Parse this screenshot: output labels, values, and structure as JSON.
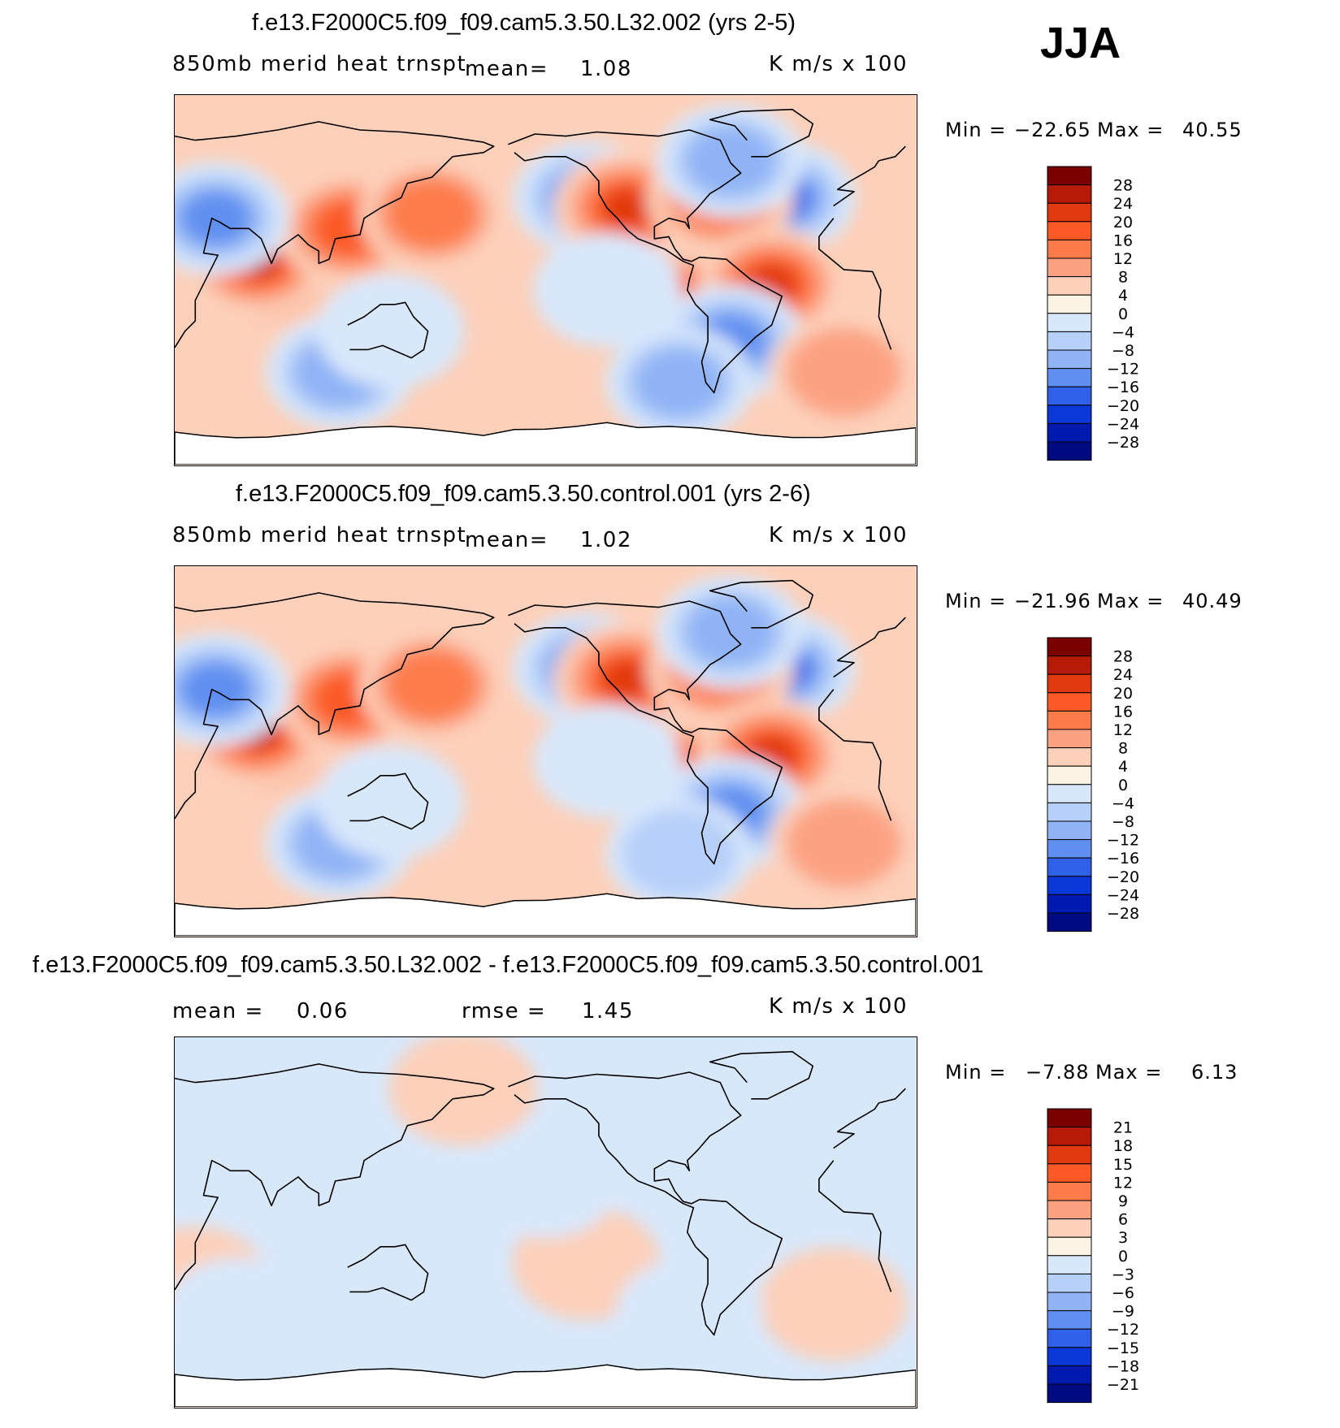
{
  "season": "JJA",
  "panels": [
    {
      "title": "f.e13.F2000C5.f09_f09.cam5.3.50.L32.002 (yrs 2-5)",
      "variable": "850mb merid heat trnspt",
      "mean_label": "mean=",
      "mean_value": "1.08",
      "units": "K m/s x 100",
      "min_label": "Min =",
      "min_value": "−22.65",
      "max_label": "Max =",
      "max_value": "40.55",
      "colorbar": [
        "28",
        "24",
        "20",
        "16",
        "12",
        "8",
        "4",
        "0",
        "−4",
        "−8",
        "−12",
        "−16",
        "−20",
        "−24",
        "−28"
      ]
    },
    {
      "title": "f.e13.F2000C5.f09_f09.cam5.3.50.control.001 (yrs 2-6)",
      "variable": "850mb merid heat trnspt",
      "mean_label": "mean=",
      "mean_value": "1.02",
      "units": "K m/s x 100",
      "min_label": "Min =",
      "min_value": "−21.96",
      "max_label": "Max =",
      "max_value": "40.49",
      "colorbar": [
        "28",
        "24",
        "20",
        "16",
        "12",
        "8",
        "4",
        "0",
        "−4",
        "−8",
        "−12",
        "−16",
        "−20",
        "−24",
        "−28"
      ]
    },
    {
      "title": "f.e13.F2000C5.f09_f09.cam5.3.50.L32.002 - f.e13.F2000C5.f09_f09.cam5.3.50.control.001",
      "mean_label": "mean =",
      "mean_value": "0.06",
      "rmse_label": "rmse =",
      "rmse_value": "1.45",
      "units": "K m/s x 100",
      "min_label": "Min =",
      "min_value": "−7.88",
      "max_label": "Max =",
      "max_value": "6.13",
      "colorbar": [
        "21",
        "18",
        "15",
        "12",
        "9",
        "6",
        "3",
        "0",
        "−3",
        "−6",
        "−9",
        "−12",
        "−15",
        "−18",
        "−21"
      ]
    }
  ],
  "colors": {
    "palette": [
      "#7a0000",
      "#b51b06",
      "#e23a10",
      "#fb5a26",
      "#fd7b49",
      "#fca283",
      "#fdd0b9",
      "#fdf3e5",
      "#d8e8fb",
      "#b7d0f9",
      "#8fb3f5",
      "#5f8ff0",
      "#2f62e8",
      "#0a38d6",
      "#001ab0",
      "#000a80"
    ]
  },
  "chart_data": [
    {
      "type": "heatmap",
      "title": "f.e13.F2000C5.f09_f09.cam5.3.50.L32.002 (yrs 2-5)",
      "subtitle": "850mb merid heat trnspt",
      "units": "K m/s x 100",
      "mean": 1.08,
      "min": -22.65,
      "max": 40.55,
      "levels": [
        -28,
        -24,
        -20,
        -16,
        -12,
        -8,
        -4,
        0,
        4,
        8,
        12,
        16,
        20,
        24,
        28
      ],
      "blobs": [
        {
          "lon": 75,
          "lat": 3,
          "v": 30
        },
        {
          "lon": 70,
          "lat": 10,
          "v": 24
        },
        {
          "lon": 115,
          "lat": 25,
          "v": 18
        },
        {
          "lon": 155,
          "lat": 32,
          "v": 12
        },
        {
          "lon": -130,
          "lat": 40,
          "v": -24
        },
        {
          "lon": -110,
          "lat": 35,
          "v": 20
        },
        {
          "lon": -35,
          "lat": 40,
          "v": -22
        },
        {
          "lon": -65,
          "lat": 40,
          "v": 14
        },
        {
          "lon": -85,
          "lat": -12,
          "v": 16
        },
        {
          "lon": -40,
          "lat": -2,
          "v": 20
        },
        {
          "lon": -60,
          "lat": -30,
          "v": -16
        },
        {
          "lon": 50,
          "lat": 30,
          "v": -16
        },
        {
          "lon": 110,
          "lat": -45,
          "v": -12
        },
        {
          "lon": -85,
          "lat": -50,
          "v": -12
        },
        {
          "lon": -60,
          "lat": 58,
          "v": -12
        },
        {
          "lon": 135,
          "lat": -25,
          "v": -6
        },
        {
          "lon": -5,
          "lat": -45,
          "v": 8
        },
        {
          "lon": -120,
          "lat": -5,
          "v": -5
        }
      ]
    },
    {
      "type": "heatmap",
      "title": "f.e13.F2000C5.f09_f09.cam5.3.50.control.001 (yrs 2-6)",
      "subtitle": "850mb merid heat trnspt",
      "units": "K m/s x 100",
      "mean": 1.02,
      "min": -21.96,
      "max": 40.49,
      "levels": [
        -28,
        -24,
        -20,
        -16,
        -12,
        -8,
        -4,
        0,
        4,
        8,
        12,
        16,
        20,
        24,
        28
      ],
      "blobs": [
        {
          "lon": 75,
          "lat": 3,
          "v": 30
        },
        {
          "lon": 70,
          "lat": 10,
          "v": 24
        },
        {
          "lon": 115,
          "lat": 25,
          "v": 18
        },
        {
          "lon": 155,
          "lat": 32,
          "v": 14
        },
        {
          "lon": -130,
          "lat": 40,
          "v": -24
        },
        {
          "lon": -110,
          "lat": 35,
          "v": 20
        },
        {
          "lon": -35,
          "lat": 40,
          "v": -22
        },
        {
          "lon": -65,
          "lat": 40,
          "v": 14
        },
        {
          "lon": -85,
          "lat": -12,
          "v": 16
        },
        {
          "lon": -40,
          "lat": -2,
          "v": 20
        },
        {
          "lon": -60,
          "lat": -30,
          "v": -16
        },
        {
          "lon": 50,
          "lat": 30,
          "v": -16
        },
        {
          "lon": 110,
          "lat": -45,
          "v": -12
        },
        {
          "lon": -85,
          "lat": -50,
          "v": -10
        },
        {
          "lon": -60,
          "lat": 58,
          "v": -12
        },
        {
          "lon": 135,
          "lat": -25,
          "v": -6
        },
        {
          "lon": -5,
          "lat": -45,
          "v": 8
        },
        {
          "lon": -120,
          "lat": -5,
          "v": -5
        }
      ]
    },
    {
      "type": "heatmap",
      "title": "f.e13.F2000C5.f09_f09.cam5.3.50.L32.002 - f.e13.F2000C5.f09_f09.cam5.3.50.control.001",
      "units": "K m/s x 100",
      "mean": 0.06,
      "rmse": 1.45,
      "min": -7.88,
      "max": 6.13,
      "levels": [
        -21,
        -18,
        -15,
        -12,
        -9,
        -6,
        -3,
        0,
        3,
        6,
        9,
        12,
        15,
        18,
        21
      ],
      "blobs": [
        {
          "lon": 40,
          "lat": -30,
          "v": 4
        },
        {
          "lon": -130,
          "lat": -20,
          "v": 3
        },
        {
          "lon": -10,
          "lat": -40,
          "v": 4
        },
        {
          "lon": 170,
          "lat": 65,
          "v": 3
        },
        {
          "lon": 120,
          "lat": -40,
          "v": -4
        },
        {
          "lon": -80,
          "lat": -45,
          "v": -3
        },
        {
          "lon": 60,
          "lat": -45,
          "v": -3
        },
        {
          "lon": -150,
          "lat": 20,
          "v": -3
        }
      ]
    }
  ]
}
